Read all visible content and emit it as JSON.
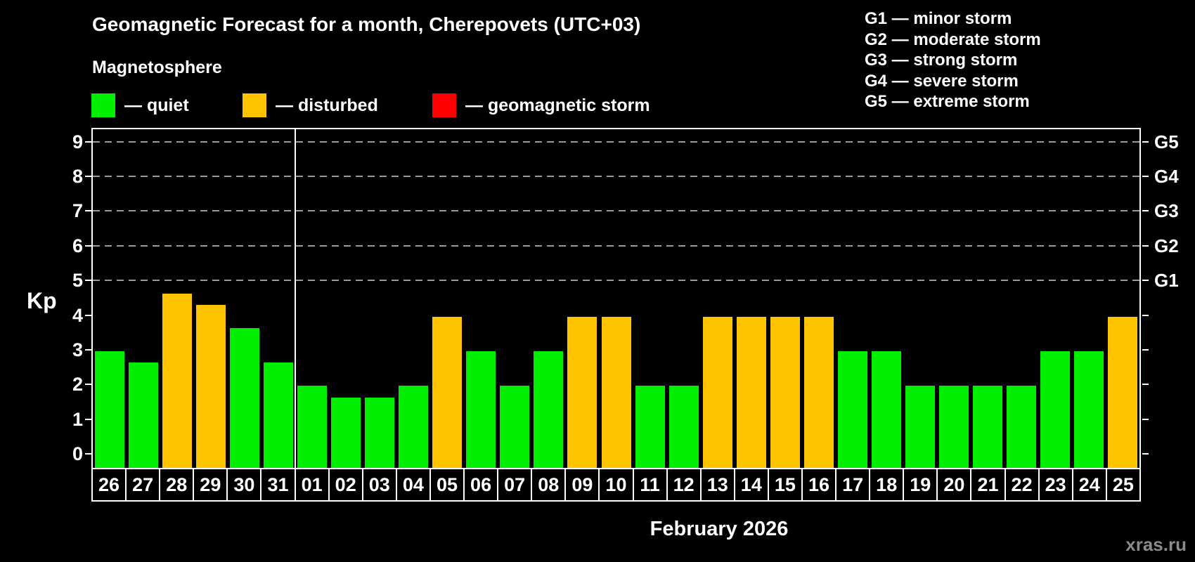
{
  "header": {
    "title": "Geomagnetic Forecast for a month, Cherepovets (UTC+03)",
    "subtitle": "Magnetosphere"
  },
  "legend": {
    "quiet_label": "— quiet",
    "disturbed_label": "— disturbed",
    "storm_label": "— geomagnetic storm"
  },
  "g_scale_legend": {
    "lines": [
      "G1 — minor storm",
      "G2 — moderate storm",
      "G3 — strong storm",
      "G4 — severe storm",
      "G5 — extreme storm"
    ]
  },
  "colors": {
    "background": "#000000",
    "quiet": "#00ee00",
    "disturbed": "#ffc400",
    "storm": "#ff0000",
    "gridline": "#9a9a9a",
    "axis": "#ffffff",
    "watermark": "#8a8a8a"
  },
  "footer": {
    "month_caption": "February 2026",
    "watermark": "xras.ru"
  },
  "chart_data": {
    "type": "bar",
    "title": "Geomagnetic Forecast for a month, Cherepovets (UTC+03)",
    "xlabel": "February 2026",
    "ylabel": "Kp",
    "ylim": [
      -0.4,
      9.4
    ],
    "y_ticks": [
      0,
      1,
      2,
      3,
      4,
      5,
      6,
      7,
      8,
      9
    ],
    "gridlines_at": [
      5,
      6,
      7,
      8,
      9
    ],
    "grid": "dashed-horizontal-top-half-only",
    "legend_position": "top-left",
    "right_axis_ticks": [
      {
        "label": "G1",
        "kp": 5
      },
      {
        "label": "G2",
        "kp": 6
      },
      {
        "label": "G3",
        "kp": 7
      },
      {
        "label": "G4",
        "kp": 8
      },
      {
        "label": "G5",
        "kp": 9
      }
    ],
    "categories": [
      "26",
      "27",
      "28",
      "29",
      "30",
      "31",
      "01",
      "02",
      "03",
      "04",
      "05",
      "06",
      "07",
      "08",
      "09",
      "10",
      "11",
      "12",
      "13",
      "14",
      "15",
      "16",
      "17",
      "18",
      "19",
      "20",
      "21",
      "22",
      "23",
      "24",
      "25"
    ],
    "values": [
      3,
      2.67,
      4.67,
      4.33,
      3.67,
      2.67,
      2,
      1.67,
      1.67,
      2,
      4,
      3,
      2,
      3,
      4,
      4,
      2,
      2,
      4,
      4,
      4,
      4,
      3,
      3,
      2,
      2,
      2,
      2,
      3,
      3,
      4
    ],
    "status": [
      "quiet",
      "quiet",
      "disturbed",
      "disturbed",
      "quiet",
      "quiet",
      "quiet",
      "quiet",
      "quiet",
      "quiet",
      "disturbed",
      "quiet",
      "quiet",
      "quiet",
      "disturbed",
      "disturbed",
      "quiet",
      "quiet",
      "disturbed",
      "disturbed",
      "disturbed",
      "disturbed",
      "quiet",
      "quiet",
      "quiet",
      "quiet",
      "quiet",
      "quiet",
      "quiet",
      "quiet",
      "disturbed"
    ],
    "separator_after_index": 5,
    "legend_entries": [
      {
        "name": "quiet",
        "color": "#00ee00"
      },
      {
        "name": "disturbed",
        "color": "#ffc400"
      },
      {
        "name": "geomagnetic storm",
        "color": "#ff0000"
      }
    ]
  }
}
